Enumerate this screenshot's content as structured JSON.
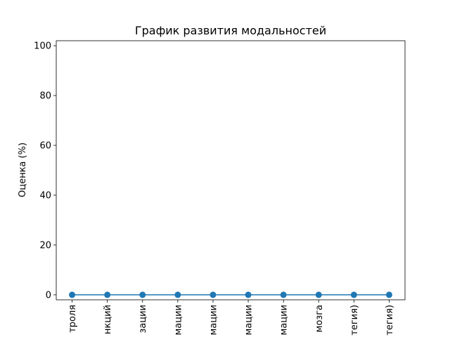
{
  "chart_data": {
    "type": "line",
    "title": "График развития модальностей",
    "ylabel": "Оценка (%)",
    "xlabel": "",
    "ylim": [
      -2,
      102
    ],
    "yticks": [
      0,
      20,
      40,
      60,
      80,
      100
    ],
    "grid": false,
    "categories": [
      "троля",
      "нкций",
      "зации",
      "мации",
      "мации",
      "мации",
      "мации",
      "мозга",
      "тегия)",
      "тегия)"
    ],
    "series": [
      {
        "values": [
          0,
          0,
          0,
          0,
          0,
          0,
          0,
          0,
          0,
          0
        ],
        "color": "#1f77b4",
        "marker": "circle"
      }
    ]
  }
}
